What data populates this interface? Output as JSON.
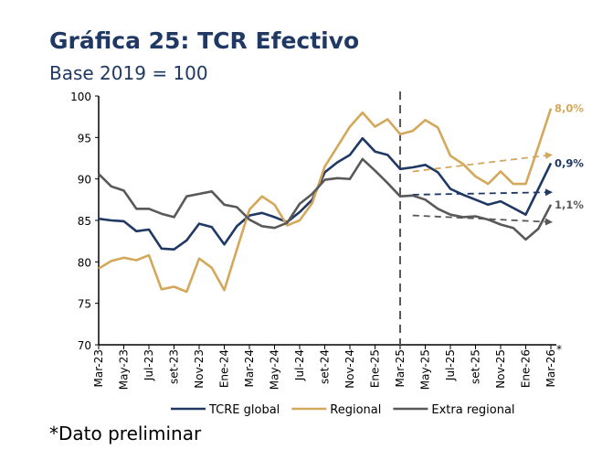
{
  "title": "Gráfica 25: TCR Efectivo",
  "subtitle": "Base 2019 = 100",
  "footnote": "*Dato preliminar",
  "chart_data": {
    "type": "line",
    "title": "Gráfica 25: TCR Efectivo",
    "subtitle": "Base 2019 = 100",
    "xlabel": "",
    "ylabel": "",
    "ylim": [
      70,
      100
    ],
    "yticks": [
      70,
      75,
      80,
      85,
      90,
      95,
      100
    ],
    "grid": false,
    "legend_position": "bottom",
    "x": [
      "Mar-23",
      "Abr-23",
      "May-23",
      "Jun-23",
      "Jul-23",
      "Ago-23",
      "set-23",
      "Oct-23",
      "Nov-23",
      "Dic-23",
      "Ene-24",
      "Feb-24",
      "Mar-24",
      "Abr-24",
      "May-24",
      "Jun-24",
      "Jul-24",
      "Ago-24",
      "set-24",
      "Oct-24",
      "Nov-24",
      "Dic-24",
      "Ene-25",
      "Feb-25",
      "Mar-25",
      "Abr-25",
      "May-25",
      "Jun-25",
      "Jul-25",
      "Ago-25",
      "set-25",
      "Oct-25",
      "Nov-25",
      "Dic-25",
      "Ene-26",
      "Feb-26",
      "Mar-26"
    ],
    "xtick_labels": [
      "Mar-23",
      "May-23",
      "Jul-23",
      "set-23",
      "Nov-23",
      "Ene-24",
      "Mar-24",
      "May-24",
      "Jul-24",
      "set-24",
      "Nov-24",
      "Ene-25",
      "Mar-25",
      "May-25",
      "Jul-25",
      "set-25",
      "Nov-25",
      "Ene-26",
      "Mar-26"
    ],
    "last_tick_marker": "*",
    "series": [
      {
        "name": "TCRE global",
        "color": "#1f3864",
        "values": [
          85.2,
          85.0,
          84.9,
          83.7,
          83.9,
          81.6,
          81.5,
          82.6,
          84.6,
          84.2,
          82.1,
          84.3,
          85.6,
          85.9,
          85.4,
          84.8,
          86.0,
          87.5,
          90.8,
          92.0,
          92.9,
          94.9,
          93.3,
          92.9,
          91.2,
          91.4,
          91.7,
          90.8,
          88.8,
          88.1,
          87.5,
          86.9,
          87.3,
          86.5,
          85.7,
          88.8,
          91.9
        ],
        "end_label": "0,9%",
        "trend": {
          "from": [
            "Abr-25",
            88.1
          ],
          "to": [
            "Mar-26",
            88.4
          ]
        }
      },
      {
        "name": "Regional",
        "color": "#d4a85a",
        "values": [
          79.2,
          80.1,
          80.5,
          80.2,
          80.8,
          76.7,
          77.0,
          76.4,
          80.4,
          79.3,
          76.6,
          81.5,
          86.3,
          87.9,
          86.9,
          84.4,
          85.0,
          87.1,
          91.5,
          93.9,
          96.3,
          98.0,
          96.3,
          97.2,
          95.4,
          95.8,
          97.1,
          96.2,
          92.8,
          91.8,
          90.3,
          89.4,
          90.9,
          89.4,
          89.4,
          93.9,
          98.5
        ],
        "end_label": "8,0%",
        "trend": {
          "from": [
            "Abr-25",
            90.9
          ],
          "to": [
            "Mar-26",
            92.9
          ]
        }
      },
      {
        "name": "Extra regional",
        "color": "#595959",
        "values": [
          90.6,
          89.1,
          88.6,
          86.4,
          86.4,
          85.8,
          85.4,
          87.9,
          88.2,
          88.5,
          86.9,
          86.6,
          85.1,
          84.3,
          84.1,
          84.7,
          87.0,
          88.2,
          89.9,
          90.1,
          90.0,
          92.4,
          91.0,
          89.5,
          87.9,
          88.0,
          87.5,
          86.4,
          85.7,
          85.4,
          85.5,
          85.1,
          84.5,
          84.1,
          82.7,
          84.0,
          86.9
        ],
        "end_label": "1,1%",
        "trend": {
          "from": [
            "Abr-25",
            85.6
          ],
          "to": [
            "Mar-26",
            84.8
          ]
        }
      }
    ],
    "annotations": [
      {
        "type": "vertical-dashed-line",
        "x": "Mar-25",
        "color": "#595959"
      }
    ]
  }
}
